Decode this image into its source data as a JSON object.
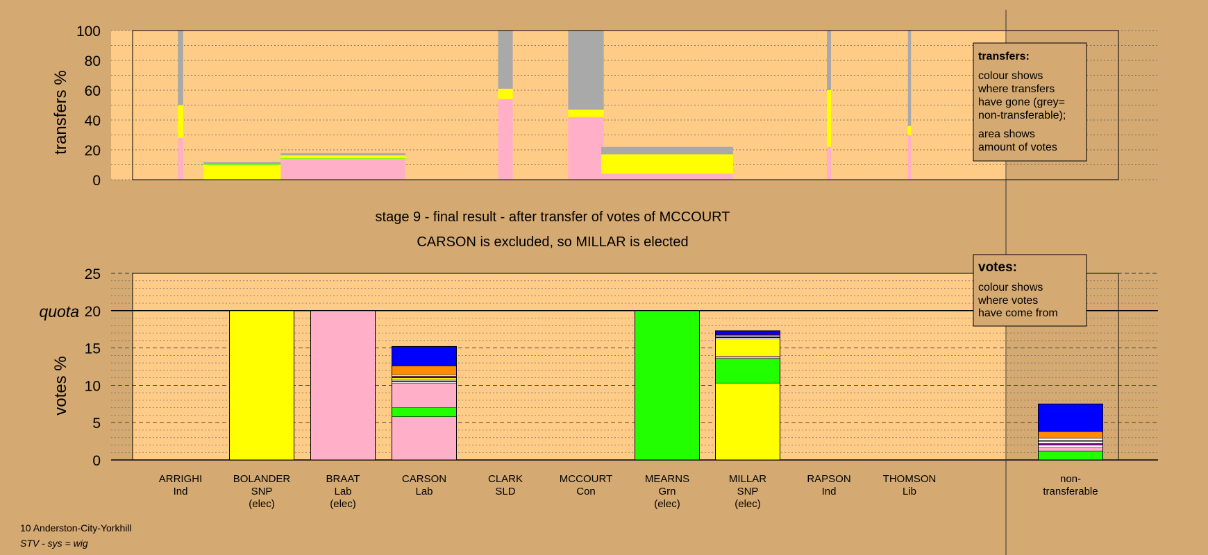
{
  "chart_data": [
    {
      "type": "bar",
      "panel": "transfers",
      "ylabel": "transfers %",
      "ylim": [
        0,
        100
      ],
      "yticks": [
        0,
        20,
        40,
        60,
        80,
        100
      ],
      "legend": {
        "title": "transfers:",
        "lines1": [
          "colour shows",
          "where transfers",
          "have gone (grey=",
          "non-transferable);"
        ],
        "lines2": [
          "area shows",
          "amount of votes"
        ]
      },
      "note": "bar width is proportional to the amount of votes transferred",
      "bars": [
        {
          "category": "ARRIGHI",
          "width_pct": 0.5,
          "segments": [
            {
              "colour": "pink",
              "value": 28
            },
            {
              "colour": "yellow",
              "value": 22
            },
            {
              "colour": "grey",
              "value": 50
            }
          ]
        },
        {
          "category": "BOLANDER",
          "width_pct": 11.1,
          "segments": [
            {
              "colour": "yellow",
              "value": 10
            },
            {
              "colour": "green",
              "value": 0.5
            },
            {
              "colour": "grey",
              "value": 1.3
            }
          ]
        },
        {
          "category": "BRAAT",
          "width_pct": 11.9,
          "segments": [
            {
              "colour": "pink",
              "value": 14
            },
            {
              "colour": "green",
              "value": 0.3
            },
            {
              "colour": "yellow",
              "value": 2
            },
            {
              "colour": "grey",
              "value": 1.5
            }
          ]
        },
        {
          "category": "CLARK",
          "width_pct": 1.4,
          "segments": [
            {
              "colour": "pink",
              "value": 54
            },
            {
              "colour": "yellow",
              "value": 7
            },
            {
              "colour": "grey",
              "value": 39
            }
          ]
        },
        {
          "category": "MCCOURT",
          "width_pct": 3.4,
          "segments": [
            {
              "colour": "pink",
              "value": 42
            },
            {
              "colour": "yellow",
              "value": 5
            },
            {
              "colour": "grey",
              "value": 53
            }
          ]
        },
        {
          "category": "MEARNS",
          "width_pct": 12.6,
          "segments": [
            {
              "colour": "pink",
              "value": 4
            },
            {
              "colour": "yellow",
              "value": 13
            },
            {
              "colour": "grey",
              "value": 5
            }
          ]
        },
        {
          "category": "RAPSON",
          "width_pct": 0.4,
          "segments": [
            {
              "colour": "pink",
              "value": 22
            },
            {
              "colour": "yellow",
              "value": 38
            },
            {
              "colour": "grey",
              "value": 40
            }
          ]
        },
        {
          "category": "THOMSON",
          "width_pct": 0.3,
          "segments": [
            {
              "colour": "pink",
              "value": 30
            },
            {
              "colour": "yellow",
              "value": 6
            },
            {
              "colour": "grey",
              "value": 64
            }
          ]
        }
      ]
    },
    {
      "type": "bar",
      "panel": "votes",
      "ylabel": "votes %",
      "ylim": [
        0,
        25
      ],
      "yticks": [
        0,
        5,
        10,
        15,
        20,
        25
      ],
      "quota_label": "quota",
      "quota": 20,
      "legend": {
        "title": "votes:",
        "lines": [
          "colour shows",
          "where votes",
          "have come from"
        ]
      },
      "categories": [
        {
          "name": "ARRIGHI",
          "party": "Ind",
          "status": ""
        },
        {
          "name": "BOLANDER",
          "party": "SNP",
          "status": "(elec)"
        },
        {
          "name": "BRAAT",
          "party": "Lab",
          "status": "(elec)"
        },
        {
          "name": "CARSON",
          "party": "Lab",
          "status": ""
        },
        {
          "name": "CLARK",
          "party": "SLD",
          "status": ""
        },
        {
          "name": "MCCOURT",
          "party": "Con",
          "status": ""
        },
        {
          "name": "MEARNS",
          "party": "Grn",
          "status": "(elec)"
        },
        {
          "name": "MILLAR",
          "party": "SNP",
          "status": "(elec)"
        },
        {
          "name": "RAPSON",
          "party": "Ind",
          "status": ""
        },
        {
          "name": "THOMSON",
          "party": "Lib",
          "status": ""
        }
      ],
      "nontransferable_label": [
        "non-",
        "transferable"
      ],
      "stacks": [
        {
          "category": "BOLANDER",
          "segments": [
            {
              "colour": "yellow",
              "value": 20
            }
          ]
        },
        {
          "category": "BRAAT",
          "segments": [
            {
              "colour": "pink",
              "value": 20
            }
          ]
        },
        {
          "category": "CARSON",
          "segments": [
            {
              "colour": "pink",
              "value": 5.8
            },
            {
              "colour": "green",
              "value": 1.2
            },
            {
              "colour": "pink",
              "value": 3.3
            },
            {
              "colour": "white",
              "value": 0.2
            },
            {
              "colour": "black",
              "value": 0.1
            },
            {
              "colour": "white",
              "value": 0.2
            },
            {
              "colour": "yellow",
              "value": 0.2
            },
            {
              "colour": "purple",
              "value": 0.2
            },
            {
              "colour": "white",
              "value": 0.2
            },
            {
              "colour": "orange",
              "value": 1.2
            },
            {
              "colour": "blue",
              "value": 2.6
            }
          ]
        },
        {
          "category": "MEARNS",
          "segments": [
            {
              "colour": "green",
              "value": 20
            }
          ]
        },
        {
          "category": "MILLAR",
          "segments": [
            {
              "colour": "yellow",
              "value": 10.3
            },
            {
              "colour": "green",
              "value": 3.3
            },
            {
              "colour": "pink",
              "value": 0.3
            },
            {
              "colour": "yellow",
              "value": 2.3
            },
            {
              "colour": "white",
              "value": 0.2
            },
            {
              "colour": "black",
              "value": 0.1
            },
            {
              "colour": "white",
              "value": 0.2
            },
            {
              "colour": "purple",
              "value": 0.1
            },
            {
              "colour": "blue",
              "value": 0.5
            }
          ]
        },
        {
          "category": "non-transferable",
          "segments": [
            {
              "colour": "green",
              "value": 1.2
            },
            {
              "colour": "pink",
              "value": 0.5
            },
            {
              "colour": "white",
              "value": 0.3
            },
            {
              "colour": "purple",
              "value": 0.2
            },
            {
              "colour": "white",
              "value": 0.3
            },
            {
              "colour": "black",
              "value": 0.1
            },
            {
              "colour": "white",
              "value": 0.3
            },
            {
              "colour": "orange",
              "value": 0.9
            },
            {
              "colour": "blue",
              "value": 3.7
            }
          ]
        }
      ]
    }
  ],
  "stage_title": "stage 9 - final result - after transfer of votes of MCCOURT",
  "stage_subtitle": "CARSON is excluded, so MILLAR is elected",
  "footer": {
    "ward": "10 Anderston-City-Yorkhill",
    "system": "STV - sys = wig"
  },
  "colours": {
    "page_bg": "#d4a972",
    "plot_bg": "#ffcc88",
    "yellow": "#ffff00",
    "pink": "#ffb0c8",
    "green": "#22ff00",
    "blue": "#0000ff",
    "orange": "#ff8c00",
    "purple": "#800080",
    "white": "#ffffff",
    "black": "#000000",
    "grey": "#a9a9a9"
  }
}
